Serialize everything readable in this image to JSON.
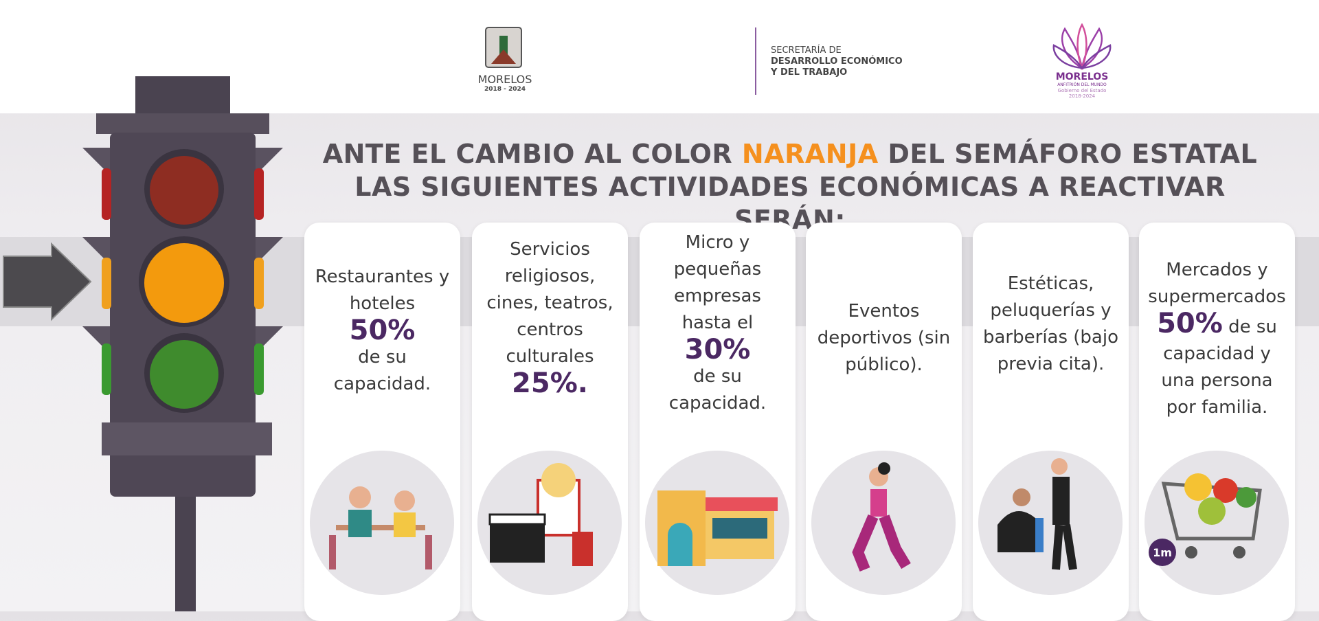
{
  "header": {
    "left_logo": {
      "name": "MORELOS",
      "years": "2018 - 2024"
    },
    "center": {
      "line1": "SECRETARÍA DE",
      "line2": "DESARROLLO ECONÓMICO",
      "line3": "Y DEL TRABAJO"
    },
    "right_logo": {
      "name": "MORELOS",
      "tagline": "ANFITRIÓN DEL MUNDO",
      "line1": "Gobierno del Estado",
      "line2": "2018-2024"
    }
  },
  "title": {
    "line1_before": "ANTE EL CAMBIO AL COLOR",
    "line1_highlight": "NARANJA",
    "line1_after": "DEL SEMÁFORO ESTATAL",
    "line2": "LAS SIGUIENTES ACTIVIDADES ECONÓMICAS A REACTIVAR SERÁN:"
  },
  "cards": [
    {
      "before": "Restaurantes y hoteles",
      "highlight": "50%",
      "after": "de su capacidad."
    },
    {
      "before": "Servicios religiosos, cines, teatros, centros culturales",
      "highlight": "25%."
    },
    {
      "before": "Micro y pequeñas empresas hasta el",
      "highlight": "30%",
      "after": "de su capacidad."
    },
    {
      "before": "Eventos deportivos (sin público)."
    },
    {
      "before": "Estéticas, peluquerías y barberías (bajo previa cita)."
    },
    {
      "before": "Mercados y supermercados",
      "highlight": "50%",
      "after": "de su capacidad y una persona por familia.",
      "badge": "1m"
    }
  ]
}
